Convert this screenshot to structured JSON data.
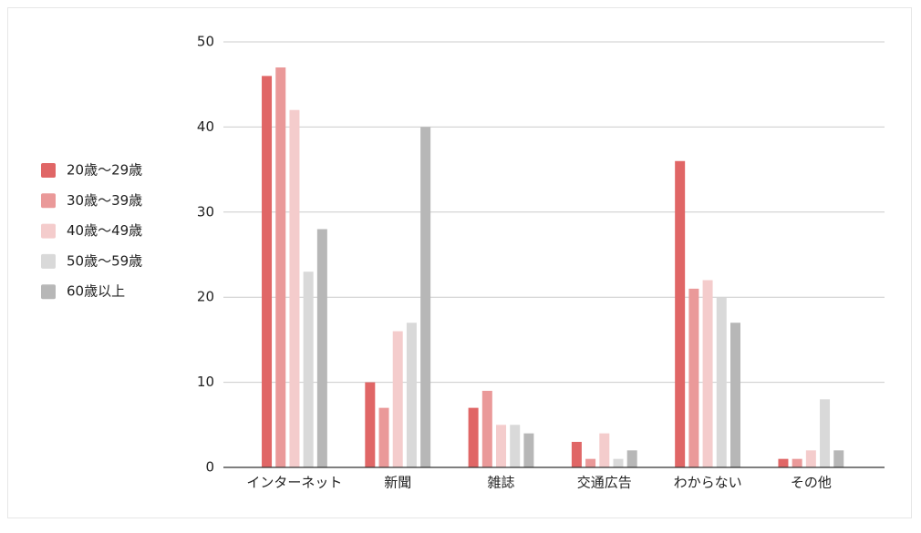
{
  "chart_data": {
    "type": "bar",
    "categories": [
      "インターネット",
      "新聞",
      "雑誌",
      "交通広告",
      "わからない",
      "その他"
    ],
    "series": [
      {
        "name": "20歳〜29歳",
        "color": "#e06666",
        "values": [
          46,
          10,
          7,
          3,
          36,
          1
        ]
      },
      {
        "name": "30歳〜39歳",
        "color": "#ea9999",
        "values": [
          47,
          7,
          9,
          1,
          21,
          1
        ]
      },
      {
        "name": "40歳〜49歳",
        "color": "#f4cccc",
        "values": [
          42,
          16,
          5,
          4,
          22,
          2
        ]
      },
      {
        "name": "50歳〜59歳",
        "color": "#d9d9d9",
        "values": [
          23,
          17,
          5,
          1,
          20,
          8
        ]
      },
      {
        "name": "60歳以上",
        "color": "#b7b7b7",
        "values": [
          28,
          40,
          4,
          2,
          17,
          2
        ]
      }
    ],
    "ylim": [
      0,
      50
    ],
    "yticks": [
      0,
      10,
      20,
      30,
      40,
      50
    ],
    "grid": true,
    "legend": "left"
  }
}
